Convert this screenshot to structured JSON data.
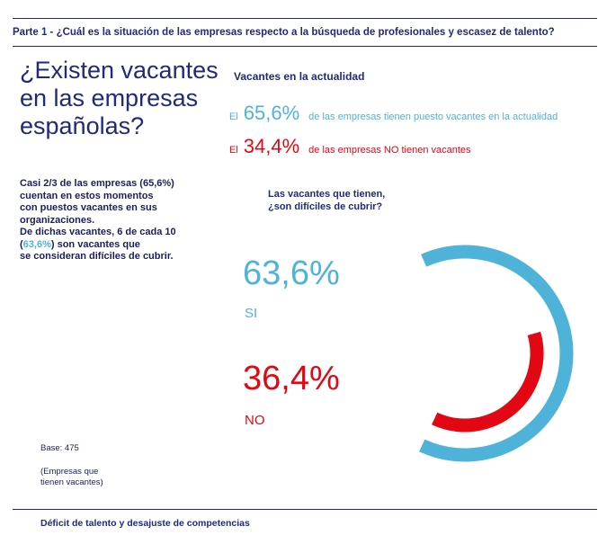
{
  "header": {
    "title": "Parte 1 - ¿Cuál es la situación de las empresas respecto a la búsqueda de profesionales y escasez de talento?"
  },
  "headline": {
    "line1": "¿Existen vacantes",
    "line2": "en las empresas",
    "line3": "españolas?"
  },
  "current": {
    "subtitle": "Vacantes en la actualidad",
    "stats": [
      {
        "prefix": "El",
        "value": "65,6%",
        "text": "de las empresas tienen puesto vacantes en la actualidad"
      },
      {
        "prefix": "El",
        "value": "34,4%",
        "text": "de las empresas NO tienen vacantes"
      }
    ]
  },
  "summary": {
    "line1": "Casi 2/3 de las empresas (65,6%)",
    "line2": "cuentan en estos momentos",
    "line3": "con puestos vacantes en sus",
    "line4": "organizaciones.",
    "line5": "De dichas vacantes, 6 de cada 10",
    "line6_open": "(",
    "line6_highlight": "63,6%",
    "line6_rest": ") son vacantes que",
    "line7": "se consideran difíciles de cubrir."
  },
  "question": {
    "line1": "Las vacantes que tienen,",
    "line2": "¿son difíciles de cubrir?"
  },
  "chart_data": {
    "type": "pie",
    "categories": [
      "SI",
      "NO"
    ],
    "values": [
      63.6,
      36.4
    ],
    "value_labels": [
      "63,6%",
      "36,4%"
    ],
    "colors": [
      "#4fb3d9",
      "#e30613"
    ]
  },
  "base": {
    "label": "Base: 475",
    "note_line1": "(Empresas que",
    "note_line2": "tienen vacantes)"
  },
  "footer": {
    "title": "Déficit de talento y desajuste de competencias"
  }
}
